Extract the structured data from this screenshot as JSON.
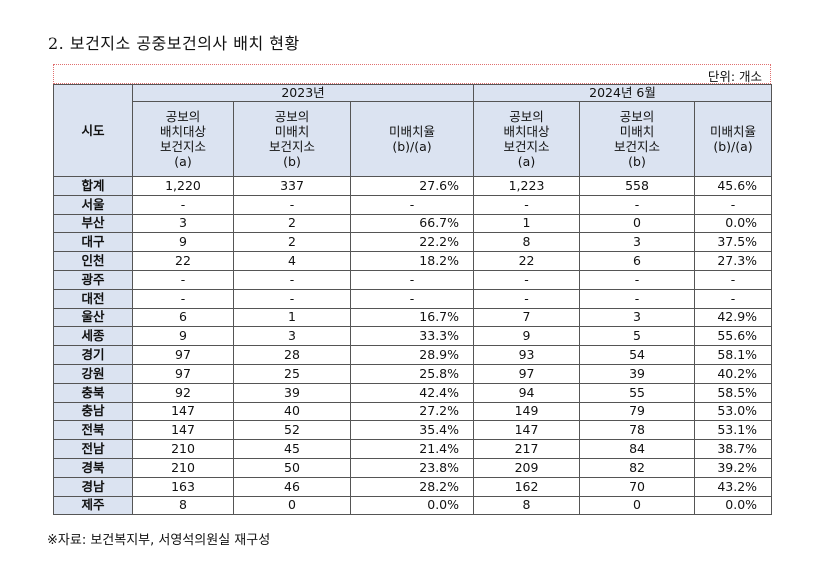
{
  "title": "2. 보건지소 공중보건의사 배치 현황",
  "unit": "단위: 개소",
  "header": {
    "region": "시도",
    "years": [
      "2023년",
      "2024년 6월"
    ],
    "columns": [
      [
        "공보의",
        "배치대상",
        "보건지소",
        "(a)"
      ],
      [
        "공보의",
        "미배치",
        "보건지소",
        "(b)"
      ],
      [
        "미배치율",
        "(b)/(a)"
      ],
      [
        "공보의",
        "배치대상",
        "보건지소",
        "(a)"
      ],
      [
        "공보의",
        "미배치",
        "보건지소",
        "(b)"
      ],
      [
        "미배치율",
        "(b)/(a)"
      ]
    ]
  },
  "rows": [
    {
      "region": "합계",
      "a23": "1,220",
      "b23": "337",
      "r23": "27.6%",
      "a24": "1,223",
      "b24": "558",
      "r24": "45.6%"
    },
    {
      "region": "서울",
      "a23": "-",
      "b23": "-",
      "r23": "-",
      "a24": "-",
      "b24": "-",
      "r24": "-"
    },
    {
      "region": "부산",
      "a23": "3",
      "b23": "2",
      "r23": "66.7%",
      "a24": "1",
      "b24": "0",
      "r24": "0.0%"
    },
    {
      "region": "대구",
      "a23": "9",
      "b23": "2",
      "r23": "22.2%",
      "a24": "8",
      "b24": "3",
      "r24": "37.5%"
    },
    {
      "region": "인천",
      "a23": "22",
      "b23": "4",
      "r23": "18.2%",
      "a24": "22",
      "b24": "6",
      "r24": "27.3%"
    },
    {
      "region": "광주",
      "a23": "-",
      "b23": "-",
      "r23": "-",
      "a24": "-",
      "b24": "-",
      "r24": "-"
    },
    {
      "region": "대전",
      "a23": "-",
      "b23": "-",
      "r23": "-",
      "a24": "-",
      "b24": "-",
      "r24": "-"
    },
    {
      "region": "울산",
      "a23": "6",
      "b23": "1",
      "r23": "16.7%",
      "a24": "7",
      "b24": "3",
      "r24": "42.9%"
    },
    {
      "region": "세종",
      "a23": "9",
      "b23": "3",
      "r23": "33.3%",
      "a24": "9",
      "b24": "5",
      "r24": "55.6%"
    },
    {
      "region": "경기",
      "a23": "97",
      "b23": "28",
      "r23": "28.9%",
      "a24": "93",
      "b24": "54",
      "r24": "58.1%"
    },
    {
      "region": "강원",
      "a23": "97",
      "b23": "25",
      "r23": "25.8%",
      "a24": "97",
      "b24": "39",
      "r24": "40.2%"
    },
    {
      "region": "충북",
      "a23": "92",
      "b23": "39",
      "r23": "42.4%",
      "a24": "94",
      "b24": "55",
      "r24": "58.5%"
    },
    {
      "region": "충남",
      "a23": "147",
      "b23": "40",
      "r23": "27.2%",
      "a24": "149",
      "b24": "79",
      "r24": "53.0%"
    },
    {
      "region": "전북",
      "a23": "147",
      "b23": "52",
      "r23": "35.4%",
      "a24": "147",
      "b24": "78",
      "r24": "53.1%"
    },
    {
      "region": "전남",
      "a23": "210",
      "b23": "45",
      "r23": "21.4%",
      "a24": "217",
      "b24": "84",
      "r24": "38.7%"
    },
    {
      "region": "경북",
      "a23": "210",
      "b23": "50",
      "r23": "23.8%",
      "a24": "209",
      "b24": "82",
      "r24": "39.2%"
    },
    {
      "region": "경남",
      "a23": "163",
      "b23": "46",
      "r23": "28.2%",
      "a24": "162",
      "b24": "70",
      "r24": "43.2%"
    },
    {
      "region": "제주",
      "a23": "8",
      "b23": "0",
      "r23": "0.0%",
      "a24": "8",
      "b24": "0",
      "r24": "0.0%"
    }
  ],
  "source": "※자료: 보건복지부, 서영석의원실 재구성"
}
